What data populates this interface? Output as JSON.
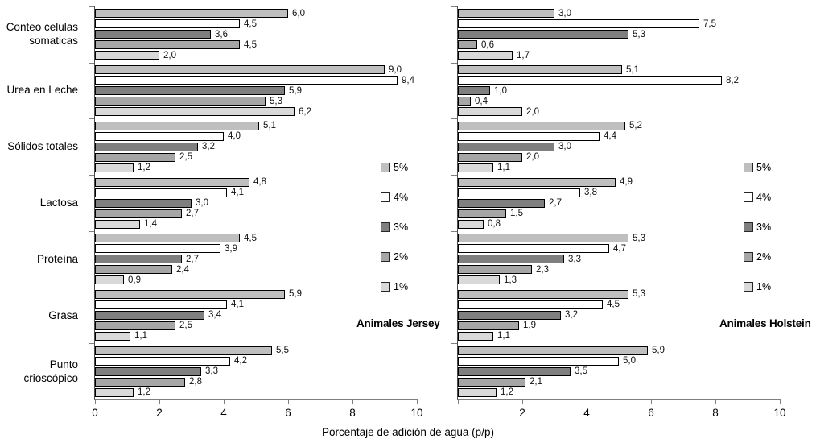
{
  "figure": {
    "xlabel": "Porcentaje de adición de agua (p/p)",
    "decimal_separator": ",",
    "background": "#ffffff",
    "axis_color": "#7f7f7f"
  },
  "legend": {
    "position": "inside-right",
    "items": [
      {
        "label": "5%",
        "color": "#bfbfbf"
      },
      {
        "label": "4%",
        "color": "#ffffff"
      },
      {
        "label": "3%",
        "color": "#7f7f7f"
      },
      {
        "label": "2%",
        "color": "#a6a6a6"
      },
      {
        "label": "1%",
        "color": "#d9d9d9"
      }
    ]
  },
  "chart_data": [
    {
      "type": "bar",
      "orientation": "horizontal",
      "title": "Animales Jersey",
      "grid": false,
      "show_category_labels": true,
      "categories": [
        "Conteo celulas somaticas",
        "Urea en Leche",
        "Sólidos totales",
        "Lactosa",
        "Proteína",
        "Grasa",
        "Punto crioscópico"
      ],
      "category_label_lines": [
        [
          "Conteo celulas",
          "somaticas"
        ],
        [
          "Urea en Leche"
        ],
        [
          "Sólidos totales"
        ],
        [
          "Lactosa"
        ],
        [
          "Proteína"
        ],
        [
          "Grasa"
        ],
        [
          "Punto",
          "crioscópico"
        ]
      ],
      "series": [
        {
          "name": "5%",
          "color": "#bfbfbf",
          "values": [
            6.0,
            9.0,
            5.1,
            4.8,
            4.5,
            5.9,
            5.5
          ]
        },
        {
          "name": "4%",
          "color": "#ffffff",
          "values": [
            4.5,
            9.4,
            4.0,
            4.1,
            3.9,
            4.1,
            4.2
          ]
        },
        {
          "name": "3%",
          "color": "#7f7f7f",
          "values": [
            3.6,
            5.9,
            3.2,
            3.0,
            2.7,
            3.4,
            3.3
          ]
        },
        {
          "name": "2%",
          "color": "#a6a6a6",
          "values": [
            4.5,
            5.3,
            2.5,
            2.7,
            2.4,
            2.5,
            2.8
          ]
        },
        {
          "name": "1%",
          "color": "#d9d9d9",
          "values": [
            2.0,
            6.2,
            1.2,
            1.4,
            0.9,
            1.1,
            1.2
          ]
        }
      ],
      "xlim": [
        0,
        10
      ],
      "xticks": [
        0,
        2,
        4,
        6,
        8,
        10
      ],
      "xtick_labels": [
        "0",
        "2",
        "4",
        "6",
        "8",
        "10"
      ]
    },
    {
      "type": "bar",
      "orientation": "horizontal",
      "title": "Animales Holstein",
      "grid": false,
      "show_category_labels": false,
      "categories": [
        "Conteo celulas somaticas",
        "Urea en Leche",
        "Sólidos totales",
        "Lactosa",
        "Proteína",
        "Grasa",
        "Punto crioscópico"
      ],
      "series": [
        {
          "name": "5%",
          "color": "#bfbfbf",
          "values": [
            3.0,
            5.1,
            5.2,
            4.9,
            5.3,
            5.3,
            5.9
          ]
        },
        {
          "name": "4%",
          "color": "#ffffff",
          "values": [
            7.5,
            8.2,
            4.4,
            3.8,
            4.7,
            4.5,
            5.0
          ]
        },
        {
          "name": "3%",
          "color": "#7f7f7f",
          "values": [
            5.3,
            1.0,
            3.0,
            2.7,
            3.3,
            3.2,
            3.5
          ]
        },
        {
          "name": "2%",
          "color": "#a6a6a6",
          "values": [
            0.6,
            0.4,
            2.0,
            1.5,
            2.3,
            1.9,
            2.1
          ]
        },
        {
          "name": "1%",
          "color": "#d9d9d9",
          "values": [
            1.7,
            2.0,
            1.1,
            0.8,
            1.3,
            1.1,
            1.2
          ]
        }
      ],
      "xlim": [
        0,
        10
      ],
      "xticks": [
        0,
        2,
        4,
        6,
        8,
        10
      ],
      "xtick_labels": [
        "",
        "2",
        "4",
        "6",
        "8",
        "10"
      ]
    }
  ]
}
